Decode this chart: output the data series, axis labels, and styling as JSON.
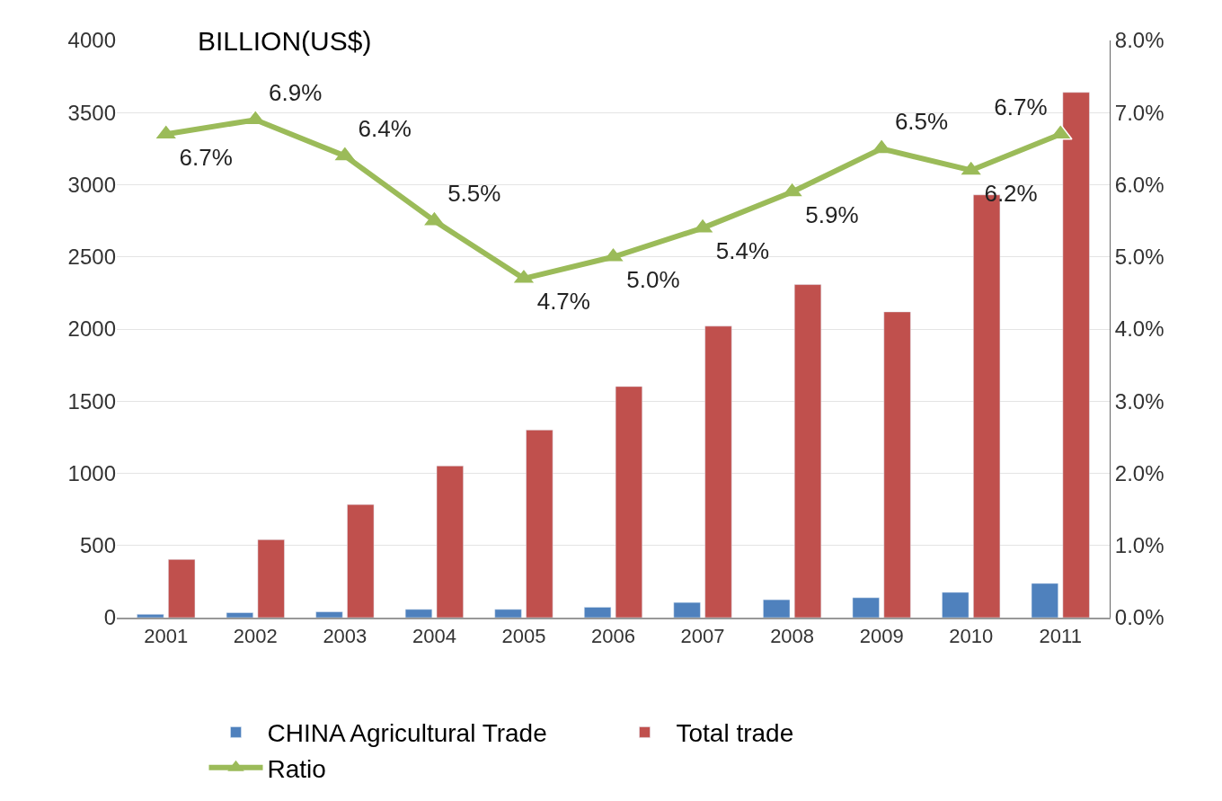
{
  "chart_data": {
    "type": "bar",
    "ylabel": "BILLION(US$)",
    "categories": [
      "2001",
      "2002",
      "2003",
      "2004",
      "2005",
      "2006",
      "2007",
      "2008",
      "2009",
      "2010",
      "2011"
    ],
    "series": [
      {
        "name": "CHINA Agricultural Trade",
        "color": "#4f81bd",
        "values": [
          23,
          34,
          40,
          57,
          57,
          72,
          105,
          124,
          138,
          175,
          237
        ]
      },
      {
        "name": "Total trade",
        "color": "#c0504d",
        "values": [
          403,
          540,
          784,
          1051,
          1300,
          1602,
          2020,
          2308,
          2119,
          2930,
          3640
        ]
      },
      {
        "name": "Ratio",
        "type": "line",
        "axis": "y2",
        "color": "#9bbb59",
        "marker": "triangle",
        "values": [
          6.7,
          6.9,
          6.4,
          5.5,
          4.7,
          5.0,
          5.4,
          5.9,
          6.5,
          6.2,
          6.7
        ],
        "value_labels": [
          "6.7%",
          "6.9%",
          "6.4%",
          "5.5%",
          "4.7%",
          "5.0%",
          "5.4%",
          "5.9%",
          "6.5%",
          "6.2%",
          "6.7%"
        ]
      }
    ],
    "ylim": [
      0,
      4000
    ],
    "yticks": [
      0,
      500,
      1000,
      1500,
      2000,
      2500,
      3000,
      3500,
      4000
    ],
    "y2lim": [
      0,
      8
    ],
    "y2ticks": [
      {
        "value": 0,
        "label": "0.0%"
      },
      {
        "value": 1,
        "label": "1.0%"
      },
      {
        "value": 2,
        "label": "2.0%"
      },
      {
        "value": 3,
        "label": "3.0%"
      },
      {
        "value": 4,
        "label": "4.0%"
      },
      {
        "value": 5,
        "label": "5.0%"
      },
      {
        "value": 6,
        "label": "6.0%"
      },
      {
        "value": 7,
        "label": "7.0%"
      },
      {
        "value": 8,
        "label": "8.0%"
      }
    ],
    "grid": "y",
    "legend": "bottom"
  }
}
